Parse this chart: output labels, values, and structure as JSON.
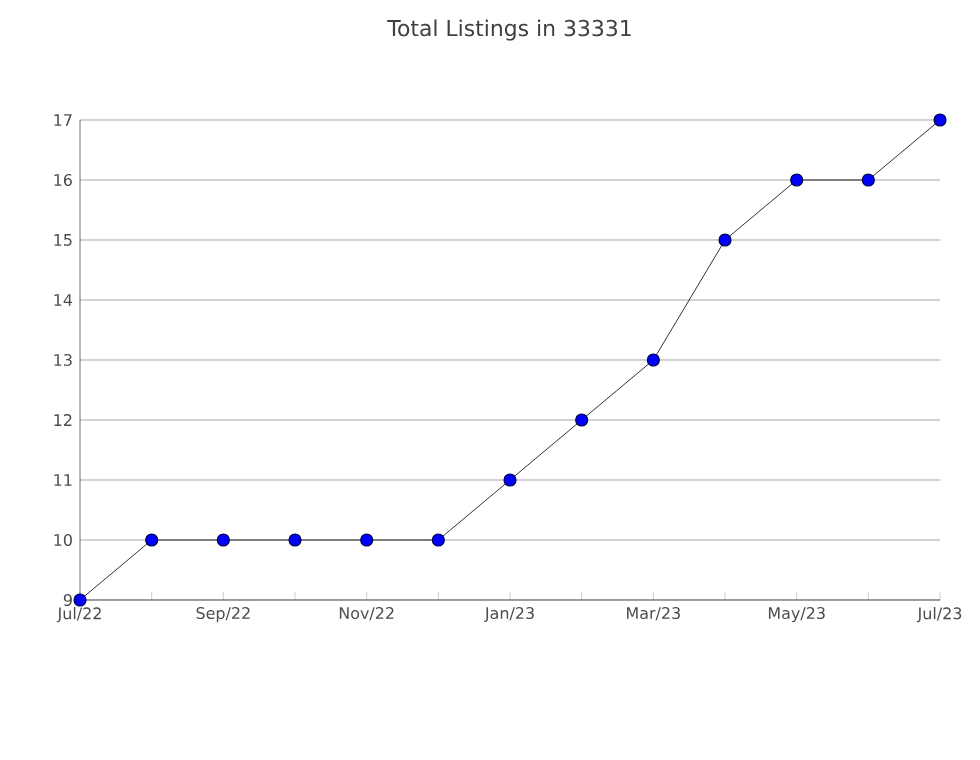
{
  "chart_data": {
    "type": "line",
    "title": "Total Listings in 33331",
    "categories": [
      "Jul/22",
      null,
      "Sep/22",
      null,
      "Nov/22",
      null,
      "Jan/23",
      null,
      "Mar/23",
      null,
      "May/23",
      null,
      "Jul/23"
    ],
    "series": [
      {
        "color": "#0000ff",
        "values": [
          9,
          10,
          10,
          10,
          10,
          10,
          11,
          12,
          13,
          15,
          16,
          16,
          17
        ]
      }
    ],
    "ylim": [
      9,
      17
    ],
    "yticks": [
      9,
      10,
      11,
      12,
      13,
      14,
      15,
      16,
      17
    ],
    "grid": "y",
    "marker": "circle",
    "line_style": "solid"
  }
}
